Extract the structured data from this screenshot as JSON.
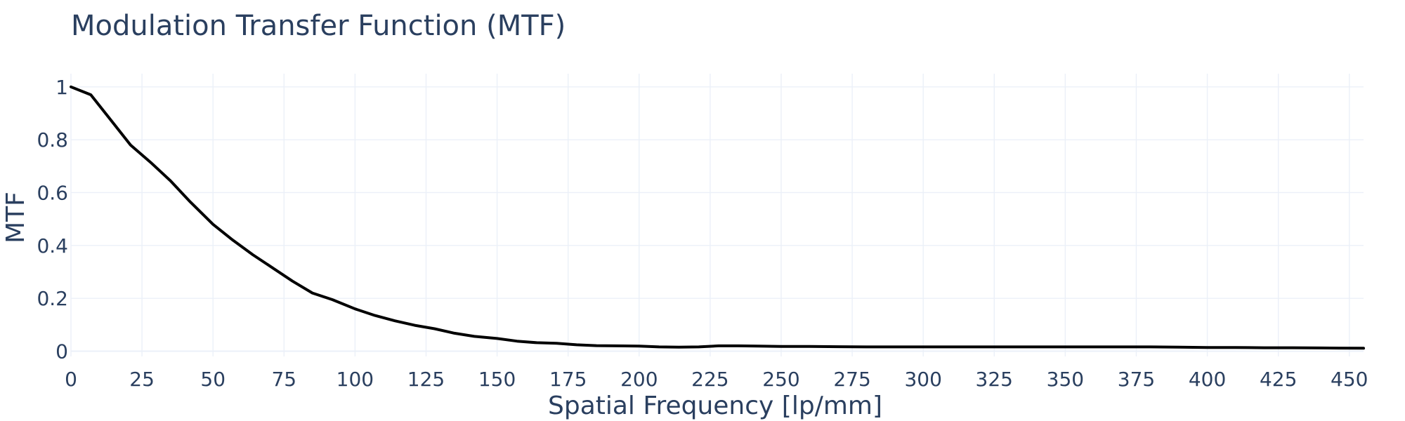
{
  "chart_data": {
    "type": "line",
    "title": "Modulation Transfer Function (MTF)",
    "xlabel": "Spatial Frequency [lp/mm]",
    "ylabel": "MTF",
    "xlim": [
      0,
      455
    ],
    "ylim": [
      -0.02,
      1.05
    ],
    "x_ticks": [
      0,
      25,
      50,
      75,
      100,
      125,
      150,
      175,
      200,
      225,
      250,
      275,
      300,
      325,
      350,
      375,
      400,
      425,
      450
    ],
    "y_ticks": [
      0,
      0.2,
      0.4,
      0.6,
      0.8,
      1
    ],
    "y_tick_labels": [
      "0",
      "0.2",
      "0.4",
      "0.6",
      "0.8",
      "1"
    ],
    "grid": true,
    "line_color": "#000000",
    "series": [
      {
        "x": [
          0,
          7,
          14,
          21,
          28,
          35,
          42,
          50,
          57,
          64,
          71,
          78,
          85,
          92,
          100,
          107,
          114,
          121,
          128,
          135,
          142,
          150,
          157,
          164,
          171,
          178,
          185,
          192,
          200,
          207,
          214,
          221,
          228,
          235,
          242,
          250,
          260,
          270,
          280,
          290,
          300,
          310,
          320,
          330,
          340,
          350,
          360,
          370,
          380,
          390,
          400,
          410,
          420,
          430,
          440,
          455
        ],
        "y": [
          1.0,
          0.97,
          0.875,
          0.78,
          0.715,
          0.645,
          0.565,
          0.48,
          0.42,
          0.365,
          0.315,
          0.265,
          0.22,
          0.195,
          0.16,
          0.135,
          0.115,
          0.098,
          0.085,
          0.068,
          0.056,
          0.048,
          0.038,
          0.032,
          0.03,
          0.024,
          0.021,
          0.02,
          0.019,
          0.016,
          0.015,
          0.016,
          0.02,
          0.02,
          0.019,
          0.018,
          0.018,
          0.017,
          0.016,
          0.016,
          0.016,
          0.016,
          0.016,
          0.016,
          0.016,
          0.016,
          0.016,
          0.016,
          0.016,
          0.015,
          0.014,
          0.014,
          0.013,
          0.013,
          0.012,
          0.011
        ]
      }
    ]
  }
}
